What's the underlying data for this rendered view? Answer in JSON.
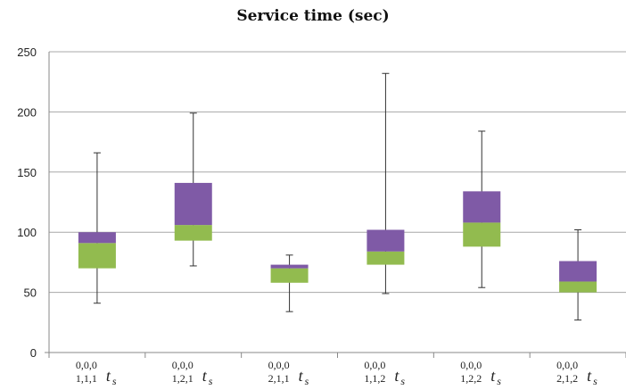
{
  "chart_data": {
    "type": "box",
    "title": "Service time (sec)",
    "xlabel": "",
    "ylabel": "",
    "ylim": [
      0,
      250
    ],
    "yticks": [
      0,
      50,
      100,
      150,
      200,
      250
    ],
    "grid": true,
    "categories": [
      {
        "top": "0,0,0",
        "bottom": "1,1,1",
        "symbol": "t",
        "sub": "s"
      },
      {
        "top": "0,0,0",
        "bottom": "1,2,1",
        "symbol": "t",
        "sub": "s"
      },
      {
        "top": "0,0,0",
        "bottom": "2,1,1",
        "symbol": "t",
        "sub": "s"
      },
      {
        "top": "0,0,0",
        "bottom": "1,1,2",
        "symbol": "t",
        "sub": "s"
      },
      {
        "top": "0,0,0",
        "bottom": "1,2,2",
        "symbol": "t",
        "sub": "s"
      },
      {
        "top": "0,0,0",
        "bottom": "2,1,2",
        "symbol": "t",
        "sub": "s"
      }
    ],
    "boxes": [
      {
        "min": 41,
        "q1": 70,
        "median": 91,
        "q3": 100,
        "max": 166
      },
      {
        "min": 72,
        "q1": 93,
        "median": 106,
        "q3": 141,
        "max": 199
      },
      {
        "min": 34,
        "q1": 58,
        "median": 70,
        "q3": 73,
        "max": 81
      },
      {
        "min": 49,
        "q1": 73,
        "median": 84,
        "q3": 102,
        "max": 232
      },
      {
        "min": 54,
        "q1": 88,
        "median": 108,
        "q3": 134,
        "max": 184
      },
      {
        "min": 27,
        "q1": 50,
        "median": 59,
        "q3": 76,
        "max": 102
      }
    ],
    "colors": {
      "lower_box": "#92bb4f",
      "upper_box": "#7f5aa6",
      "grid": "#a8a8a8",
      "axis": "#888888",
      "whisker": "#333333"
    }
  }
}
